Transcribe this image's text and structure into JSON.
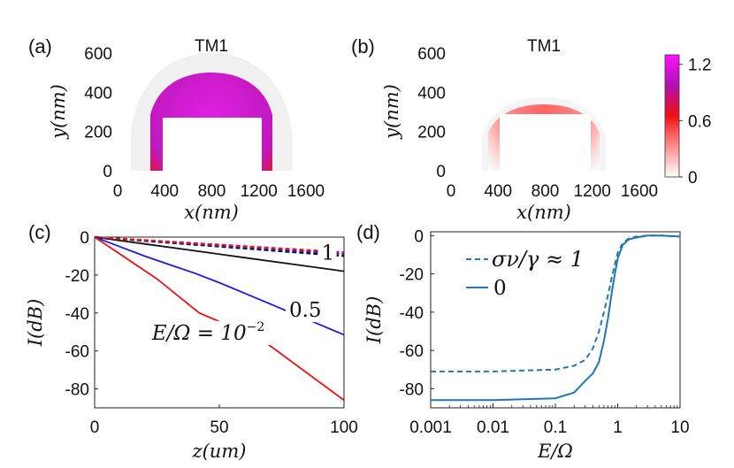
{
  "colors": {
    "magenta": "#e020e0",
    "red": "#ee1111",
    "blue": "#1a1aee",
    "black": "#111111",
    "steel": "#1f77b4",
    "cbmid": "#f02030"
  },
  "chart_data": [
    {
      "panel": "(a)",
      "type": "heatmap",
      "title": "TM1",
      "xlabel": "x(nm)",
      "ylabel": "y(nm)",
      "xlim": [
        0,
        1600
      ],
      "ylim": [
        0,
        600
      ],
      "xticks": [
        "0",
        "400",
        "800",
        "1200",
        "1600"
      ],
      "yticks": [
        "0",
        "200",
        "400",
        "600"
      ],
      "waveguide": {
        "x": [
          400,
          1200
        ],
        "y": [
          0,
          280
        ]
      },
      "field": {
        "center_x": 800,
        "center_y": 280,
        "peak": 1.2,
        "ring_peak_radius": 40,
        "ring_falloff": 160,
        "outer_extent": 350
      }
    },
    {
      "panel": "(b)",
      "type": "heatmap",
      "title": "TM1",
      "xlabel": "x(nm)",
      "ylabel": "y(nm)",
      "xlim": [
        0,
        1600
      ],
      "ylim": [
        0,
        600
      ],
      "xticks": [
        "0",
        "400",
        "800",
        "1200",
        "1600"
      ],
      "yticks": [
        "0",
        "200",
        "400",
        "600"
      ],
      "waveguide": {
        "x": [
          400,
          1200
        ],
        "y": [
          0,
          280
        ]
      },
      "field": {
        "center_x": 800,
        "center_y": 280,
        "peak": 0.6,
        "ring_peak_radius": 0,
        "ring_falloff": 70,
        "outer_extent": 120
      },
      "colorbar": {
        "range": [
          0,
          1.3
        ],
        "ticks": [
          "0",
          "0.6",
          "1.2"
        ]
      }
    },
    {
      "panel": "(c)",
      "type": "line",
      "xlabel": "z(um)",
      "ylabel": "I(dB)",
      "xlim": [
        0,
        100
      ],
      "ylim": [
        -90,
        0
      ],
      "xticks": [
        "0",
        "50",
        "100"
      ],
      "yticks": [
        "0",
        "-20",
        "-40",
        "-60",
        "-80"
      ],
      "series": [
        {
          "name": "E/Ω = 1, solid",
          "color": "black",
          "dash": false,
          "x": [
            0,
            20,
            40,
            60,
            80,
            100
          ],
          "y": [
            0,
            -3.6,
            -7.2,
            -10.8,
            -14.4,
            -18
          ]
        },
        {
          "name": "E/Ω = 0.5, solid",
          "color": "blue",
          "dash": false,
          "x": [
            0,
            10,
            20,
            30,
            40,
            50,
            60,
            70,
            80,
            90,
            100
          ],
          "y": [
            0,
            -5,
            -10,
            -14.5,
            -19,
            -24,
            -29.5,
            -35,
            -40.5,
            -46,
            -51.5
          ]
        },
        {
          "name": "E/Ω = 1e-2, solid",
          "color": "red",
          "dash": false,
          "x": [
            0,
            25,
            42,
            67,
            100
          ],
          "y": [
            0,
            -22,
            -40,
            -54,
            -86
          ]
        },
        {
          "name": "E/Ω = 1, dashed",
          "color": "black",
          "dash": true,
          "x": [
            0,
            100
          ],
          "y": [
            0,
            -10
          ]
        },
        {
          "name": "E/Ω = 0.5, dashed",
          "color": "blue",
          "dash": true,
          "x": [
            0,
            100
          ],
          "y": [
            0,
            -9
          ]
        },
        {
          "name": "E/Ω = 1e-2, dashed",
          "color": "red",
          "dash": true,
          "x": [
            0,
            100
          ],
          "y": [
            0,
            -8
          ]
        }
      ],
      "annotations": [
        {
          "text": "1",
          "x": 91,
          "y": -12
        },
        {
          "text": "0.5",
          "x": 78,
          "y": -42
        },
        {
          "text": "E/Ω = 10",
          "sup": "−2",
          "x": 23,
          "y": -54
        }
      ]
    },
    {
      "panel": "(d)",
      "type": "line",
      "xlabel": "E/Ω",
      "ylabel": "I(dB)",
      "xscale": "log",
      "xlim": [
        0.001,
        10
      ],
      "ylim": [
        -90,
        2
      ],
      "xticks": [
        "0.001",
        "0.01",
        "0.1",
        "1",
        "10"
      ],
      "yticks": [
        "0",
        "-20",
        "-40",
        "-60",
        "-80"
      ],
      "series": [
        {
          "name": "σν/γ ≈ 1",
          "color": "steel",
          "dash": true,
          "x": [
            0.001,
            0.01,
            0.1,
            0.2,
            0.3,
            0.4,
            0.5,
            0.6,
            0.7,
            0.8,
            0.9,
            1.0,
            1.2,
            1.5,
            2,
            3,
            5,
            10
          ],
          "y": [
            -71,
            -71,
            -70,
            -68,
            -65,
            -59,
            -50,
            -40,
            -31,
            -22,
            -15,
            -9,
            -4,
            -1.5,
            -0.5,
            0,
            0,
            -0.5
          ]
        },
        {
          "name": "0",
          "color": "steel",
          "dash": false,
          "x": [
            0.001,
            0.01,
            0.1,
            0.2,
            0.3,
            0.4,
            0.5,
            0.6,
            0.7,
            0.8,
            0.9,
            1.0,
            1.2,
            1.5,
            2,
            3,
            5,
            10
          ],
          "y": [
            -86,
            -86,
            -85,
            -82,
            -76,
            -72,
            -66,
            -55,
            -43,
            -30,
            -20,
            -12,
            -5,
            -2,
            -1,
            0,
            0,
            -0.5
          ]
        }
      ],
      "legend": {
        "placement": "top-left",
        "entries": [
          "σν/γ ≈ 1",
          "0"
        ]
      }
    }
  ]
}
